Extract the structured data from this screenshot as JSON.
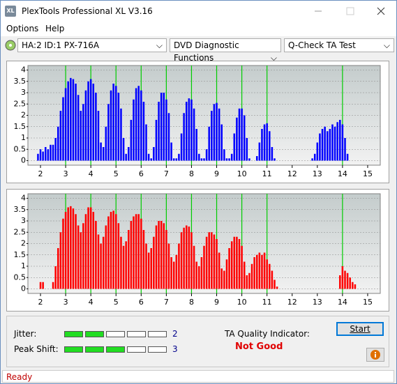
{
  "window": {
    "icon": "XL",
    "title": "PlexTools Professional XL V3.16"
  },
  "menu": [
    "Options",
    "Help"
  ],
  "toolbar": [
    "HA:2 ID:1  PX-716A",
    "DVD Diagnostic Functions",
    "Q-Check TA Test"
  ],
  "chart_data": [
    {
      "type": "bar",
      "x": [
        1.9,
        2,
        2.1,
        2.2,
        2.3,
        2.4,
        2.5,
        2.6,
        2.7,
        2.8,
        2.9,
        3,
        3.1,
        3.2,
        3.3,
        3.4,
        3.5,
        3.6,
        3.7,
        3.8,
        3.9,
        4,
        4.1,
        4.2,
        4.3,
        4.4,
        4.5,
        4.6,
        4.7,
        4.8,
        4.9,
        5,
        5.1,
        5.2,
        5.3,
        5.4,
        5.5,
        5.6,
        5.7,
        5.8,
        5.9,
        6,
        6.1,
        6.2,
        6.3,
        6.4,
        6.5,
        6.6,
        6.7,
        6.8,
        6.9,
        7,
        7.1,
        7.2,
        7.3,
        7.4,
        7.5,
        7.6,
        7.7,
        7.8,
        7.9,
        8,
        8.1,
        8.2,
        8.3,
        8.4,
        8.5,
        8.6,
        8.7,
        8.8,
        8.9,
        9,
        9.1,
        9.2,
        9.3,
        9.4,
        9.5,
        9.6,
        9.7,
        9.8,
        9.9,
        10,
        10.1,
        10.2,
        10.3,
        10.4,
        10.5,
        10.6,
        10.7,
        10.8,
        10.9,
        11,
        11.1,
        11.2,
        11.3,
        11.4,
        11.5,
        11.6,
        11.7,
        11.8,
        11.9,
        12,
        12.1,
        12.2,
        12.3,
        12.4,
        12.5,
        12.6,
        12.7,
        12.8,
        12.9,
        13,
        13.1,
        13.2,
        13.3,
        13.4,
        13.5,
        13.6,
        13.7,
        13.8,
        13.9,
        14,
        14.1,
        14.2,
        14.3,
        14.4,
        14.5
      ],
      "series": [
        {
          "color": "#0000ff",
          "values": [
            0.3,
            0.5,
            0.4,
            0.6,
            0.5,
            0.7,
            0.7,
            1.0,
            1.5,
            2.2,
            2.8,
            3.2,
            3.5,
            3.65,
            3.6,
            3.4,
            2.9,
            2.2,
            2.5,
            3.1,
            3.5,
            3.6,
            3.4,
            3.0,
            2.2,
            0.8,
            0.6,
            1.5,
            2.5,
            3.1,
            3.4,
            3.3,
            3.0,
            2.3,
            1.0,
            0.3,
            0.6,
            1.8,
            2.7,
            3.2,
            3.3,
            3.1,
            2.6,
            1.6,
            0.3,
            0.1,
            0.6,
            1.8,
            2.6,
            3.0,
            3.0,
            2.7,
            2.1,
            0.8,
            0.1,
            0.1,
            0.3,
            1.2,
            2.1,
            2.6,
            2.75,
            2.7,
            2.3,
            1.4,
            0.3,
            0.1,
            0.1,
            0.5,
            1.5,
            2.2,
            2.5,
            2.55,
            2.3,
            1.6,
            0.5,
            0.1,
            0.1,
            0.3,
            1.2,
            1.9,
            2.3,
            2.3,
            2.0,
            1.0,
            0.1,
            0,
            0,
            0.2,
            0.8,
            1.4,
            1.6,
            1.65,
            1.3,
            0.6,
            0.1,
            0,
            0,
            0,
            0,
            0,
            0,
            0,
            0,
            0,
            0,
            0,
            0,
            0,
            0,
            0.1,
            0.3,
            0.8,
            1.2,
            1.4,
            1.5,
            1.3,
            1.4,
            1.6,
            1.5,
            1.7,
            1.8,
            1.6,
            1.0,
            0.3,
            0,
            0,
            0
          ]
        }
      ],
      "markers": [
        3,
        4,
        5,
        6,
        7,
        8,
        9,
        10,
        11,
        14
      ],
      "marker_color": "#00cc00",
      "xlim": [
        1.5,
        15.5
      ],
      "ylim": [
        -0.2,
        4.2
      ],
      "xticks": [
        2,
        3,
        4,
        5,
        6,
        7,
        8,
        9,
        10,
        11,
        12,
        13,
        14,
        15
      ],
      "yticks": [
        0,
        0.5,
        1,
        1.5,
        2,
        2.5,
        3,
        3.5,
        4
      ],
      "grid": true
    },
    {
      "type": "bar",
      "x": [
        1.9,
        2,
        2.1,
        2.2,
        2.3,
        2.4,
        2.5,
        2.6,
        2.7,
        2.8,
        2.9,
        3,
        3.1,
        3.2,
        3.3,
        3.4,
        3.5,
        3.6,
        3.7,
        3.8,
        3.9,
        4,
        4.1,
        4.2,
        4.3,
        4.4,
        4.5,
        4.6,
        4.7,
        4.8,
        4.9,
        5,
        5.1,
        5.2,
        5.3,
        5.4,
        5.5,
        5.6,
        5.7,
        5.8,
        5.9,
        6,
        6.1,
        6.2,
        6.3,
        6.4,
        6.5,
        6.6,
        6.7,
        6.8,
        6.9,
        7,
        7.1,
        7.2,
        7.3,
        7.4,
        7.5,
        7.6,
        7.7,
        7.8,
        7.9,
        8,
        8.1,
        8.2,
        8.3,
        8.4,
        8.5,
        8.6,
        8.7,
        8.8,
        8.9,
        9,
        9.1,
        9.2,
        9.3,
        9.4,
        9.5,
        9.6,
        9.7,
        9.8,
        9.9,
        10,
        10.1,
        10.2,
        10.3,
        10.4,
        10.5,
        10.6,
        10.7,
        10.8,
        10.9,
        11,
        11.1,
        11.2,
        11.3,
        11.4,
        11.5,
        11.6,
        11.7,
        11.8,
        11.9,
        12,
        12.1,
        12.2,
        12.3,
        12.4,
        12.5,
        12.6,
        12.7,
        12.8,
        12.9,
        13,
        13.1,
        13.2,
        13.3,
        13.4,
        13.5,
        13.6,
        13.7,
        13.8,
        13.9,
        14,
        14.1,
        14.2,
        14.3,
        14.4,
        14.5
      ],
      "series": [
        {
          "color": "#ff0000",
          "values": [
            0,
            0.3,
            0.3,
            0,
            0,
            0,
            0.3,
            1.0,
            1.8,
            2.5,
            3.1,
            3.4,
            3.6,
            3.65,
            3.55,
            3.3,
            2.8,
            2.5,
            2.9,
            3.3,
            3.6,
            3.6,
            3.4,
            3.0,
            2.4,
            2.0,
            2.3,
            2.8,
            3.2,
            3.4,
            3.45,
            3.3,
            2.9,
            2.3,
            1.9,
            2.1,
            2.6,
            3.0,
            3.2,
            3.3,
            3.3,
            3.1,
            2.6,
            2.0,
            1.6,
            1.8,
            2.3,
            2.8,
            3.0,
            3.0,
            2.9,
            2.6,
            2.0,
            1.4,
            1.2,
            1.5,
            2.0,
            2.5,
            2.7,
            2.8,
            2.75,
            2.5,
            1.9,
            1.2,
            1.0,
            1.4,
            1.9,
            2.3,
            2.5,
            2.5,
            2.4,
            2.2,
            1.6,
            0.9,
            0.8,
            1.3,
            1.8,
            2.1,
            2.3,
            2.3,
            2.2,
            1.9,
            1.2,
            0.6,
            0.7,
            1.1,
            1.4,
            1.5,
            1.6,
            1.5,
            1.6,
            1.3,
            1.1,
            0.8,
            0.4,
            0.1,
            0,
            0,
            0,
            0,
            0,
            0,
            0,
            0,
            0,
            0,
            0,
            0,
            0,
            0,
            0,
            0,
            0,
            0,
            0,
            0,
            0,
            0,
            0,
            0,
            0.6,
            1.0,
            0.8,
            0.7,
            0.5,
            0.3,
            0.2
          ]
        }
      ],
      "markers": [
        3,
        4,
        5,
        6,
        7,
        8,
        9,
        10,
        11,
        14
      ],
      "marker_color": "#00cc00",
      "xlim": [
        1.5,
        15.5
      ],
      "ylim": [
        -0.2,
        4.2
      ],
      "xticks": [
        2,
        3,
        4,
        5,
        6,
        7,
        8,
        9,
        10,
        11,
        12,
        13,
        14,
        15
      ],
      "yticks": [
        0,
        0.5,
        1,
        1.5,
        2,
        2.5,
        3,
        3.5,
        4
      ],
      "grid": true
    }
  ],
  "meters": [
    {
      "label": "Jitter:",
      "value": 2
    },
    {
      "label": "Peak Shift:",
      "value": 3
    }
  ],
  "quality": {
    "label": "TA Quality Indicator:",
    "result": "Not Good"
  },
  "start_button": "Start",
  "status": "Ready"
}
